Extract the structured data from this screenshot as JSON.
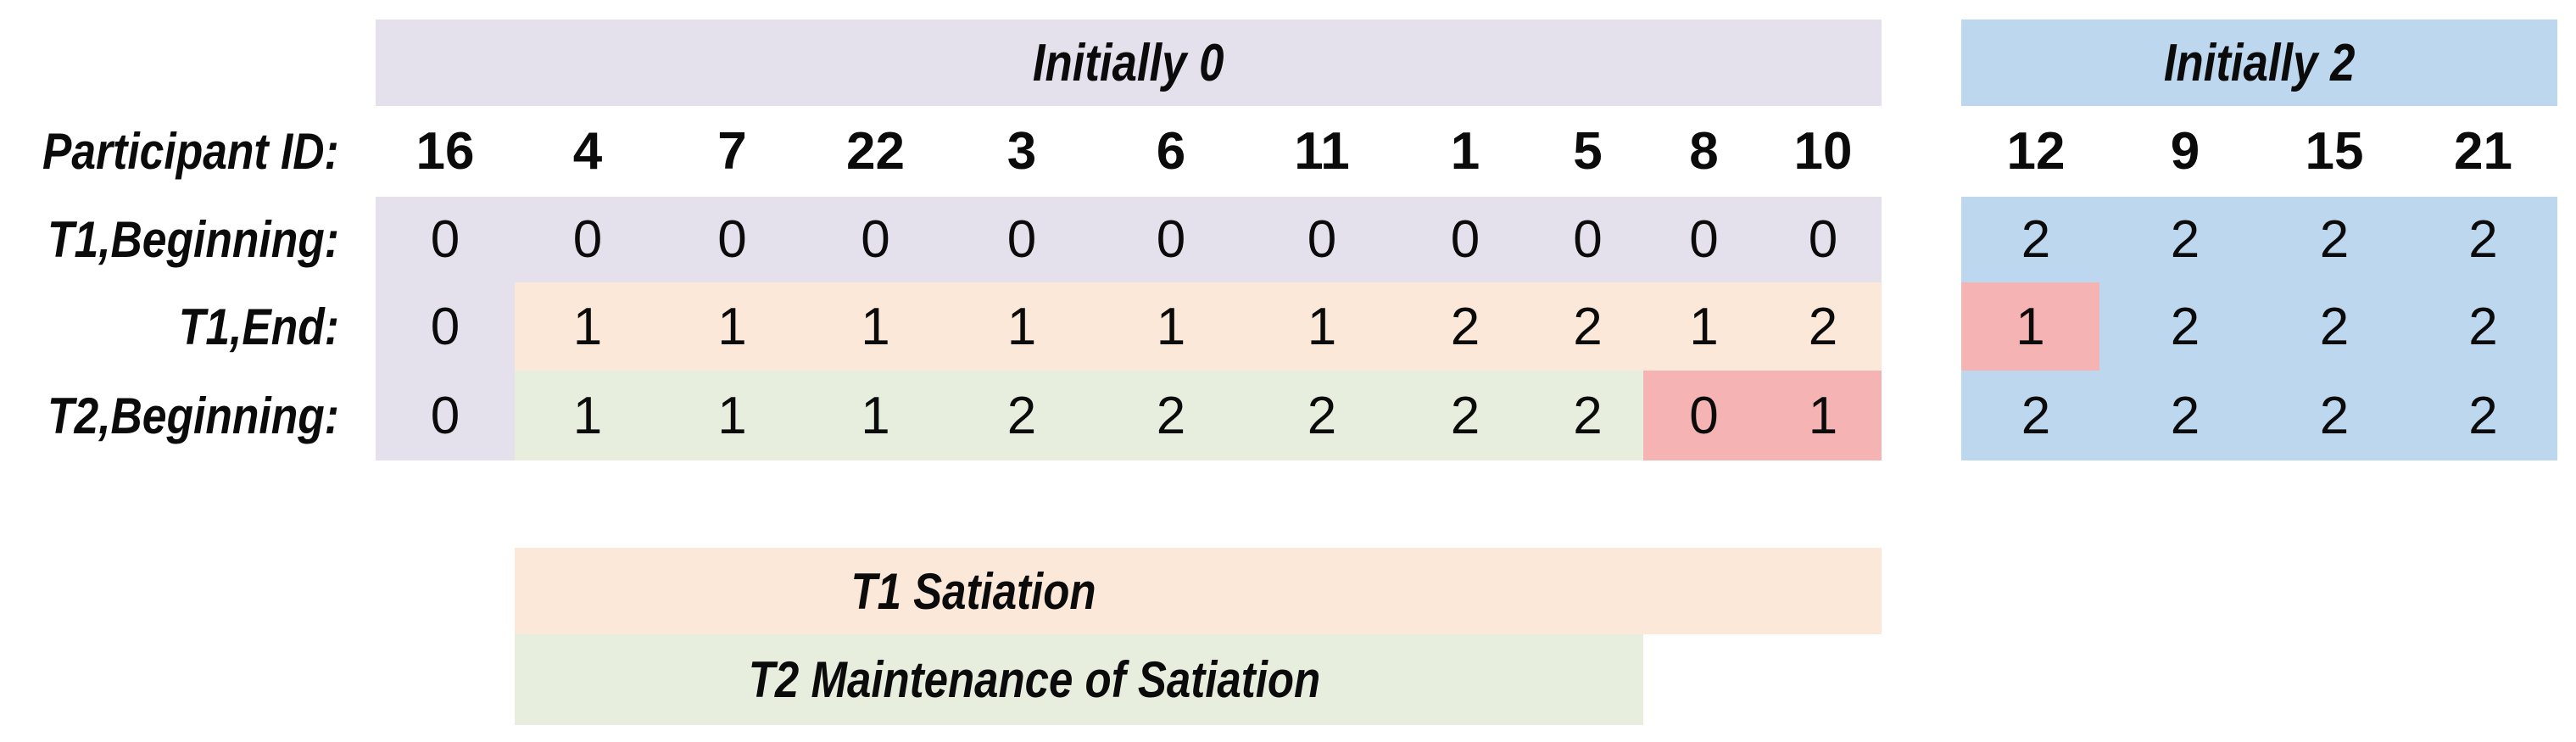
{
  "palette": {
    "lavender": "#E4E1EC",
    "blue": "#BDD7EE",
    "peach": "#FCE8D9",
    "green": "#E8EEDE",
    "red": "#F5B3B3",
    "text": "#0B0B0B",
    "background": "#FFFFFF"
  },
  "labels": {
    "participant_id": "Participant ID:",
    "t1_beginning": "T1,Beginning:",
    "t1_end": "T1,End:",
    "t2_beginning": "T2,Beginning:"
  },
  "tables": {
    "initially0": {
      "header": "Initially 0",
      "header_color": "lavender",
      "ids": [
        "16",
        "4",
        "7",
        "22",
        "3",
        "6",
        "11",
        "1",
        "5",
        "8",
        "10"
      ],
      "rows": [
        {
          "name": "t1_beginning",
          "values": [
            "0",
            "0",
            "0",
            "0",
            "0",
            "0",
            "0",
            "0",
            "0",
            "0",
            "0"
          ],
          "colors": [
            "lavender",
            "lavender",
            "lavender",
            "lavender",
            "lavender",
            "lavender",
            "lavender",
            "lavender",
            "lavender",
            "lavender",
            "lavender"
          ]
        },
        {
          "name": "t1_end",
          "values": [
            "0",
            "1",
            "1",
            "1",
            "1",
            "1",
            "1",
            "2",
            "2",
            "1",
            "2"
          ],
          "colors": [
            "lavender",
            "peach",
            "peach",
            "peach",
            "peach",
            "peach",
            "peach",
            "peach",
            "peach",
            "peach",
            "peach"
          ]
        },
        {
          "name": "t2_beginning",
          "values": [
            "0",
            "1",
            "1",
            "1",
            "2",
            "2",
            "2",
            "2",
            "2",
            "0",
            "1"
          ],
          "colors": [
            "lavender",
            "green",
            "green",
            "green",
            "green",
            "green",
            "green",
            "green",
            "green",
            "red",
            "red"
          ]
        }
      ]
    },
    "initially2": {
      "header": "Initially 2",
      "header_color": "blue",
      "ids": [
        "12",
        "9",
        "15",
        "21"
      ],
      "rows": [
        {
          "name": "t1_beginning",
          "values": [
            "2",
            "2",
            "2",
            "2"
          ],
          "colors": [
            "blue",
            "blue",
            "blue",
            "blue"
          ]
        },
        {
          "name": "t1_end",
          "values": [
            "1",
            "2",
            "2",
            "2"
          ],
          "colors": [
            "blue",
            "blue",
            "blue",
            "blue"
          ],
          "overlays": [
            {
              "index": 0,
              "color": "red"
            }
          ]
        },
        {
          "name": "t2_beginning",
          "values": [
            "2",
            "2",
            "2",
            "2"
          ],
          "colors": [
            "blue",
            "blue",
            "blue",
            "blue"
          ]
        }
      ]
    }
  },
  "legend": [
    {
      "label": "T1 Satiation",
      "color": "peach"
    },
    {
      "label": "T2 Maintenance of Satiation",
      "color": "green"
    }
  ],
  "chart_data": {
    "type": "table",
    "title": "",
    "groups": [
      {
        "group": "Initially 0",
        "participant_ids": [
          16,
          4,
          7,
          22,
          3,
          6,
          11,
          1,
          5,
          8,
          10
        ],
        "t1_beginning": [
          0,
          0,
          0,
          0,
          0,
          0,
          0,
          0,
          0,
          0,
          0
        ],
        "t1_end": [
          0,
          1,
          1,
          1,
          1,
          1,
          1,
          2,
          2,
          1,
          2
        ],
        "t2_beginning": [
          0,
          1,
          1,
          1,
          2,
          2,
          2,
          2,
          2,
          0,
          1
        ],
        "highlighted_cells": [
          {
            "row": "t2_beginning",
            "participant_id": 8,
            "value": 0
          },
          {
            "row": "t2_beginning",
            "participant_id": 10,
            "value": 1
          }
        ]
      },
      {
        "group": "Initially 2",
        "participant_ids": [
          12,
          9,
          15,
          21
        ],
        "t1_beginning": [
          2,
          2,
          2,
          2
        ],
        "t1_end": [
          1,
          2,
          2,
          2
        ],
        "t2_beginning": [
          2,
          2,
          2,
          2
        ],
        "highlighted_cells": [
          {
            "row": "t1_end",
            "participant_id": 12,
            "value": 1
          }
        ]
      }
    ],
    "legend": [
      "T1 Satiation",
      "T2 Maintenance of Satiation"
    ]
  }
}
